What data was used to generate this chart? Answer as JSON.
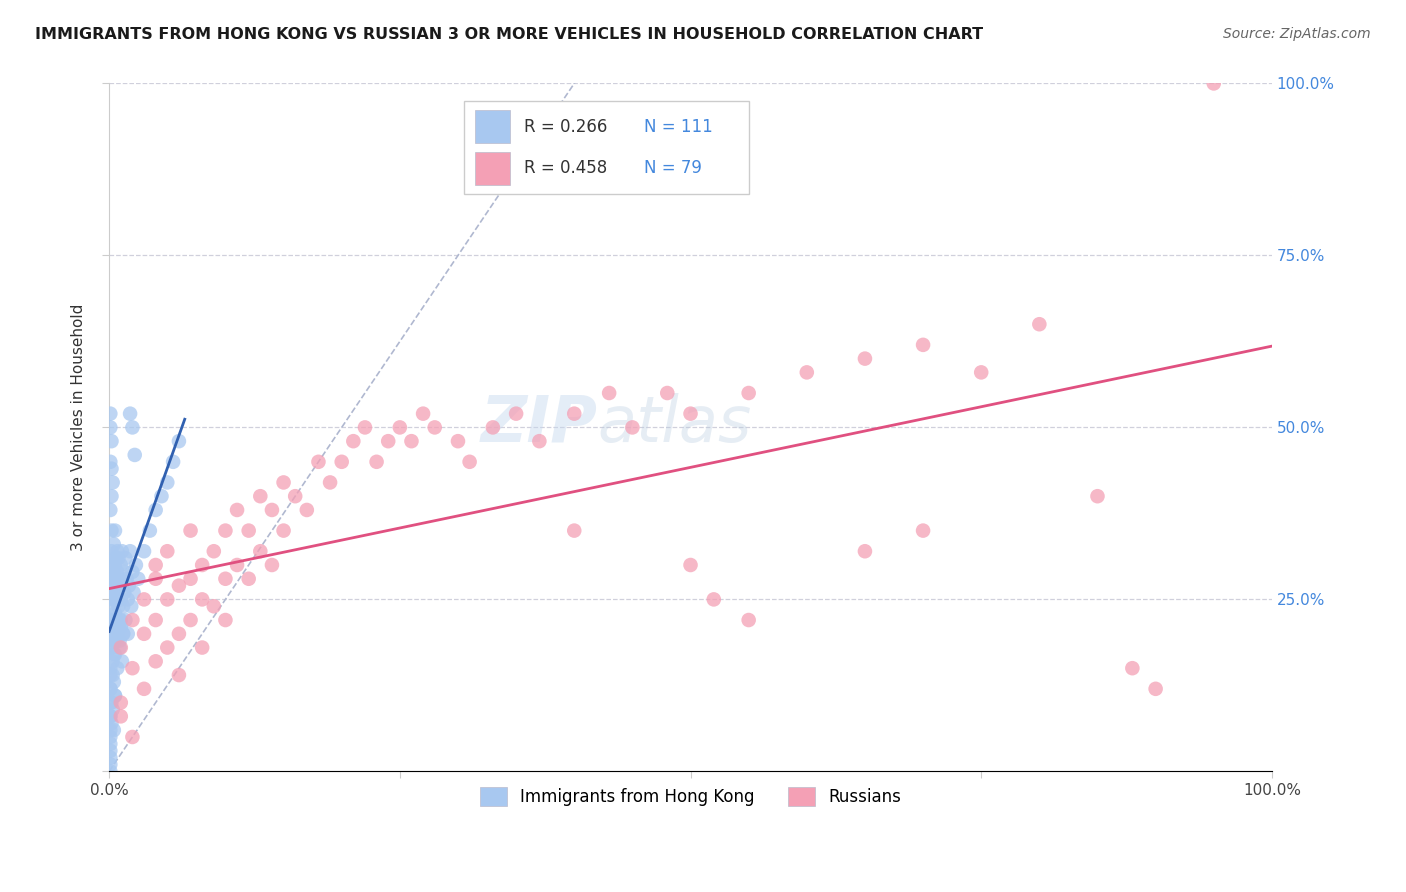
{
  "title": "IMMIGRANTS FROM HONG KONG VS RUSSIAN 3 OR MORE VEHICLES IN HOUSEHOLD CORRELATION CHART",
  "source": "Source: ZipAtlas.com",
  "ylabel": "3 or more Vehicles in Household",
  "series1_label": "Immigrants from Hong Kong",
  "series2_label": "Russians",
  "R1": 0.266,
  "N1": 111,
  "R2": 0.458,
  "N2": 79,
  "hk_color": "#a8c8f0",
  "hk_line_color": "#3060b0",
  "russian_color": "#f4a0b5",
  "russian_line_color": "#e05080",
  "diag_color": "#b0b8d0",
  "watermark": "ZIPatlas",
  "watermark_zip": "ZIP",
  "watermark_atlas": "atlas",
  "background_color": "#ffffff",
  "grid_color": "#d0d0dc",
  "legend_R_color": "#333333",
  "legend_N_color": "#4488dd",
  "right_axis_color": "#4488dd",
  "xlim": [
    0,
    1.0
  ],
  "ylim": [
    0,
    1.0
  ],
  "hk_x": [
    0.001,
    0.001,
    0.001,
    0.001,
    0.002,
    0.002,
    0.002,
    0.002,
    0.002,
    0.003,
    0.003,
    0.003,
    0.003,
    0.003,
    0.003,
    0.004,
    0.004,
    0.004,
    0.004,
    0.004,
    0.005,
    0.005,
    0.005,
    0.005,
    0.005,
    0.006,
    0.006,
    0.006,
    0.006,
    0.007,
    0.007,
    0.007,
    0.007,
    0.008,
    0.008,
    0.008,
    0.009,
    0.009,
    0.009,
    0.01,
    0.01,
    0.01,
    0.011,
    0.011,
    0.012,
    0.012,
    0.013,
    0.013,
    0.014,
    0.014,
    0.015,
    0.016,
    0.016,
    0.017,
    0.018,
    0.019,
    0.02,
    0.021,
    0.001,
    0.001,
    0.001,
    0.002,
    0.002,
    0.003,
    0.003,
    0.004,
    0.004,
    0.005,
    0.005,
    0.006,
    0.007,
    0.008,
    0.009,
    0.01,
    0.011,
    0.012,
    0.001,
    0.002,
    0.003,
    0.004,
    0.005,
    0.001,
    0.002,
    0.003,
    0.001,
    0.002,
    0.001,
    0.001,
    0.002,
    0.001,
    0.001,
    0.001,
    0.001,
    0.001,
    0.001,
    0.001,
    0.001,
    0.001,
    0.001,
    0.023,
    0.025,
    0.03,
    0.035,
    0.04,
    0.045,
    0.05,
    0.055,
    0.06,
    0.018,
    0.02,
    0.022
  ],
  "hk_y": [
    0.28,
    0.3,
    0.25,
    0.22,
    0.27,
    0.32,
    0.2,
    0.18,
    0.35,
    0.24,
    0.29,
    0.26,
    0.31,
    0.22,
    0.19,
    0.28,
    0.33,
    0.21,
    0.17,
    0.25,
    0.3,
    0.27,
    0.23,
    0.19,
    0.35,
    0.26,
    0.31,
    0.22,
    0.28,
    0.25,
    0.29,
    0.32,
    0.2,
    0.27,
    0.24,
    0.31,
    0.22,
    0.28,
    0.19,
    0.3,
    0.25,
    0.21,
    0.27,
    0.32,
    0.24,
    0.2,
    0.29,
    0.26,
    0.31,
    0.22,
    0.28,
    0.25,
    0.2,
    0.27,
    0.32,
    0.24,
    0.29,
    0.26,
    0.15,
    0.12,
    0.08,
    0.18,
    0.1,
    0.14,
    0.16,
    0.2,
    0.13,
    0.17,
    0.11,
    0.19,
    0.15,
    0.21,
    0.18,
    0.22,
    0.16,
    0.2,
    0.05,
    0.07,
    0.09,
    0.06,
    0.11,
    0.38,
    0.4,
    0.42,
    0.45,
    0.48,
    0.5,
    0.52,
    0.44,
    0.03,
    0.04,
    0.02,
    0.06,
    0.08,
    0.1,
    0.12,
    0.14,
    0.01,
    0.0,
    0.3,
    0.28,
    0.32,
    0.35,
    0.38,
    0.4,
    0.42,
    0.45,
    0.48,
    0.52,
    0.5,
    0.46
  ],
  "russian_x": [
    0.01,
    0.02,
    0.02,
    0.03,
    0.03,
    0.03,
    0.04,
    0.04,
    0.04,
    0.04,
    0.05,
    0.05,
    0.05,
    0.06,
    0.06,
    0.06,
    0.07,
    0.07,
    0.07,
    0.08,
    0.08,
    0.08,
    0.09,
    0.09,
    0.1,
    0.1,
    0.1,
    0.11,
    0.11,
    0.12,
    0.12,
    0.13,
    0.13,
    0.14,
    0.14,
    0.15,
    0.15,
    0.16,
    0.17,
    0.18,
    0.19,
    0.2,
    0.21,
    0.22,
    0.23,
    0.24,
    0.25,
    0.26,
    0.27,
    0.28,
    0.3,
    0.31,
    0.33,
    0.35,
    0.37,
    0.4,
    0.43,
    0.45,
    0.48,
    0.5,
    0.55,
    0.6,
    0.65,
    0.7,
    0.75,
    0.8,
    0.4,
    0.5,
    0.52,
    0.55,
    0.65,
    0.7,
    0.85,
    0.88,
    0.9,
    0.95,
    0.01,
    0.02,
    0.01
  ],
  "russian_y": [
    0.18,
    0.22,
    0.15,
    0.25,
    0.2,
    0.12,
    0.28,
    0.22,
    0.16,
    0.3,
    0.25,
    0.18,
    0.32,
    0.2,
    0.27,
    0.14,
    0.35,
    0.28,
    0.22,
    0.3,
    0.25,
    0.18,
    0.32,
    0.24,
    0.35,
    0.28,
    0.22,
    0.38,
    0.3,
    0.35,
    0.28,
    0.4,
    0.32,
    0.38,
    0.3,
    0.42,
    0.35,
    0.4,
    0.38,
    0.45,
    0.42,
    0.45,
    0.48,
    0.5,
    0.45,
    0.48,
    0.5,
    0.48,
    0.52,
    0.5,
    0.48,
    0.45,
    0.5,
    0.52,
    0.48,
    0.52,
    0.55,
    0.5,
    0.55,
    0.52,
    0.55,
    0.58,
    0.6,
    0.62,
    0.58,
    0.65,
    0.35,
    0.3,
    0.25,
    0.22,
    0.32,
    0.35,
    0.4,
    0.15,
    0.12,
    1.0,
    0.08,
    0.05,
    0.1
  ]
}
